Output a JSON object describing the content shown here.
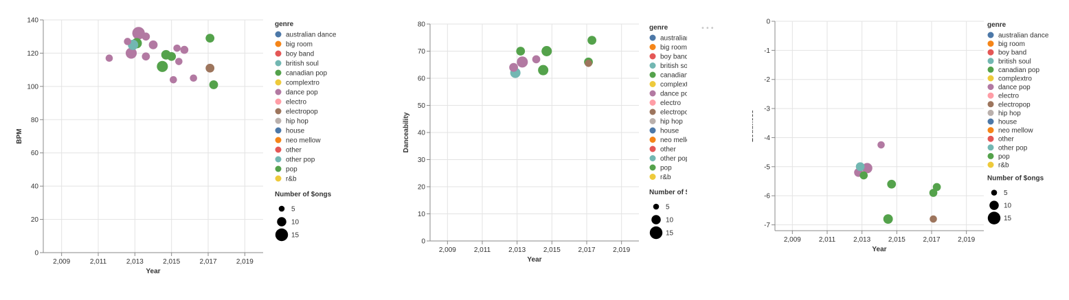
{
  "genre_colors": {
    "australian dance": "#4c78a8",
    "big room": "#f58518",
    "boy band": "#e45756",
    "british soul": "#72b7b2",
    "canadian pop": "#54a24b",
    "complextro": "#eeca3b",
    "dance pop": "#b279a2",
    "electro": "#ff9da6",
    "electropop": "#9d755d",
    "hip hop": "#bab0ac",
    "house": "#4c78a8",
    "neo mellow": "#f58518",
    "other": "#e45756",
    "other pop": "#72b7b2",
    "pop": "#54a24b",
    "r&b": "#eeca3b"
  },
  "legend": {
    "genre_title": "genre",
    "genres": [
      "australian dance",
      "big room",
      "boy band",
      "british soul",
      "canadian pop",
      "complextro",
      "dance pop",
      "electro",
      "electropop",
      "hip hop",
      "house",
      "neo mellow",
      "other",
      "other pop",
      "pop",
      "r&b"
    ],
    "size_title": "Number of $ongs",
    "sizes": [
      5,
      10,
      15
    ]
  },
  "chart_data": [
    {
      "type": "scatter",
      "xlabel": "Year",
      "ylabel": "BPM",
      "x_ticks": [
        "2,009",
        "2,011",
        "2,013",
        "2,015",
        "2,017",
        "2,019"
      ],
      "x_tick_values": [
        2009,
        2011,
        2013,
        2015,
        2017,
        2019
      ],
      "y_ticks": [
        0,
        20,
        40,
        60,
        80,
        100,
        120,
        140
      ],
      "xlim": [
        2008,
        2020
      ],
      "ylim": [
        0,
        140
      ],
      "grid": true,
      "legend_position": "right",
      "points": [
        {
          "x": 2011.6,
          "y": 117,
          "genre": "dance pop",
          "size": 6
        },
        {
          "x": 2012.6,
          "y": 127,
          "genre": "dance pop",
          "size": 6
        },
        {
          "x": 2012.8,
          "y": 120,
          "genre": "dance pop",
          "size": 11
        },
        {
          "x": 2013.1,
          "y": 126,
          "genre": "canadian pop",
          "size": 10
        },
        {
          "x": 2013.2,
          "y": 132,
          "genre": "dance pop",
          "size": 13
        },
        {
          "x": 2012.9,
          "y": 125,
          "genre": "british soul",
          "size": 10
        },
        {
          "x": 2013.6,
          "y": 130,
          "genre": "dance pop",
          "size": 7
        },
        {
          "x": 2013.6,
          "y": 118,
          "genre": "dance pop",
          "size": 7
        },
        {
          "x": 2014.0,
          "y": 125,
          "genre": "dance pop",
          "size": 8
        },
        {
          "x": 2014.5,
          "y": 112,
          "genre": "canadian pop",
          "size": 11
        },
        {
          "x": 2014.7,
          "y": 119,
          "genre": "pop",
          "size": 9
        },
        {
          "x": 2015.0,
          "y": 118,
          "genre": "pop",
          "size": 8
        },
        {
          "x": 2015.1,
          "y": 104,
          "genre": "dance pop",
          "size": 6
        },
        {
          "x": 2015.3,
          "y": 123,
          "genre": "dance pop",
          "size": 6
        },
        {
          "x": 2015.4,
          "y": 115,
          "genre": "dance pop",
          "size": 6
        },
        {
          "x": 2015.7,
          "y": 122,
          "genre": "dance pop",
          "size": 7
        },
        {
          "x": 2016.2,
          "y": 105,
          "genre": "dance pop",
          "size": 6
        },
        {
          "x": 2017.1,
          "y": 129,
          "genre": "pop",
          "size": 8
        },
        {
          "x": 2017.1,
          "y": 111,
          "genre": "electropop",
          "size": 8
        },
        {
          "x": 2017.3,
          "y": 101,
          "genre": "canadian pop",
          "size": 8
        }
      ]
    },
    {
      "type": "scatter",
      "xlabel": "Year",
      "ylabel": "Danceability",
      "x_ticks": [
        "2,009",
        "2,011",
        "2,013",
        "2,015",
        "2,017",
        "2,019"
      ],
      "x_tick_values": [
        2009,
        2011,
        2013,
        2015,
        2017,
        2019
      ],
      "y_ticks": [
        0,
        10,
        20,
        30,
        40,
        50,
        60,
        70,
        80
      ],
      "xlim": [
        2008,
        2020
      ],
      "ylim": [
        0,
        80
      ],
      "grid": true,
      "legend_position": "right",
      "points": [
        {
          "x": 2012.8,
          "y": 64,
          "genre": "dance pop",
          "size": 8
        },
        {
          "x": 2012.9,
          "y": 62,
          "genre": "british soul",
          "size": 10
        },
        {
          "x": 2013.2,
          "y": 70,
          "genre": "canadian pop",
          "size": 8
        },
        {
          "x": 2013.3,
          "y": 66,
          "genre": "dance pop",
          "size": 11
        },
        {
          "x": 2014.1,
          "y": 67,
          "genre": "dance pop",
          "size": 7
        },
        {
          "x": 2014.5,
          "y": 63,
          "genre": "canadian pop",
          "size": 10
        },
        {
          "x": 2014.7,
          "y": 70,
          "genre": "pop",
          "size": 10
        },
        {
          "x": 2017.1,
          "y": 66,
          "genre": "pop",
          "size": 8
        },
        {
          "x": 2017.1,
          "y": 65.5,
          "genre": "electropop",
          "size": 6
        },
        {
          "x": 2017.3,
          "y": 74,
          "genre": "canadian pop",
          "size": 8
        }
      ]
    },
    {
      "type": "scatter",
      "xlabel": "Year",
      "ylabel": "Loudness",
      "x_ticks": [
        "2,009",
        "2,011",
        "2,013",
        "2,015",
        "2,017",
        "2,019"
      ],
      "x_tick_values": [
        2009,
        2011,
        2013,
        2015,
        2017,
        2019
      ],
      "y_ticks": [
        0,
        -1,
        -2,
        -3,
        -4,
        -5,
        -6,
        -7
      ],
      "xlim": [
        2008,
        2020
      ],
      "ylim": [
        -7.2,
        0
      ],
      "grid": true,
      "legend_position": "right",
      "points": [
        {
          "x": 2014.1,
          "y": -4.25,
          "genre": "dance pop",
          "size": 6
        },
        {
          "x": 2012.8,
          "y": -5.2,
          "genre": "dance pop",
          "size": 8
        },
        {
          "x": 2013.1,
          "y": -5.3,
          "genre": "canadian pop",
          "size": 7
        },
        {
          "x": 2013.3,
          "y": -5.05,
          "genre": "dance pop",
          "size": 10
        },
        {
          "x": 2012.9,
          "y": -5.0,
          "genre": "british soul",
          "size": 8
        },
        {
          "x": 2014.7,
          "y": -5.6,
          "genre": "pop",
          "size": 8
        },
        {
          "x": 2017.1,
          "y": -5.9,
          "genre": "pop",
          "size": 7
        },
        {
          "x": 2017.3,
          "y": -5.7,
          "genre": "canadian pop",
          "size": 7
        },
        {
          "x": 2014.5,
          "y": -6.8,
          "genre": "canadian pop",
          "size": 9
        },
        {
          "x": 2017.1,
          "y": -6.8,
          "genre": "electropop",
          "size": 6
        }
      ]
    }
  ]
}
